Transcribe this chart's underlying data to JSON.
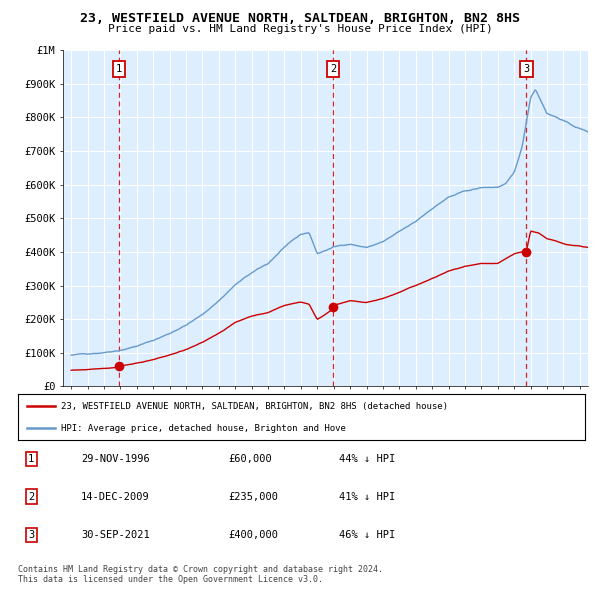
{
  "title": "23, WESTFIELD AVENUE NORTH, SALTDEAN, BRIGHTON, BN2 8HS",
  "subtitle": "Price paid vs. HM Land Registry's House Price Index (HPI)",
  "legend_line1": "23, WESTFIELD AVENUE NORTH, SALTDEAN, BRIGHTON, BN2 8HS (detached house)",
  "legend_line2": "HPI: Average price, detached house, Brighton and Hove",
  "footer": "Contains HM Land Registry data © Crown copyright and database right 2024.\nThis data is licensed under the Open Government Licence v3.0.",
  "transactions": [
    {
      "num": 1,
      "date": "29-NOV-1996",
      "price": "£60,000",
      "pct": "44% ↓ HPI",
      "year_x": 1996.91,
      "val": 60000
    },
    {
      "num": 2,
      "date": "14-DEC-2009",
      "price": "£235,000",
      "pct": "41% ↓ HPI",
      "year_x": 2009.95,
      "val": 235000
    },
    {
      "num": 3,
      "date": "30-SEP-2021",
      "price": "£400,000",
      "pct": "46% ↓ HPI",
      "year_x": 2021.75,
      "val": 400000
    }
  ],
  "hpi_color": "#6699cc",
  "price_color": "#cc0000",
  "plot_bg": "#ddeeff",
  "grid_color": "#ffffff",
  "vline_color": "#cc0000",
  "ylim": [
    0,
    1000000
  ],
  "yticks": [
    0,
    100000,
    200000,
    300000,
    400000,
    500000,
    600000,
    700000,
    800000,
    900000,
    1000000
  ],
  "ytick_labels": [
    "£0",
    "£100K",
    "£200K",
    "£300K",
    "£400K",
    "£500K",
    "£600K",
    "£700K",
    "£800K",
    "£900K",
    "£1M"
  ],
  "xmin": 1993.5,
  "xmax": 2025.5,
  "xtick_start": 1994,
  "xtick_end": 2025
}
